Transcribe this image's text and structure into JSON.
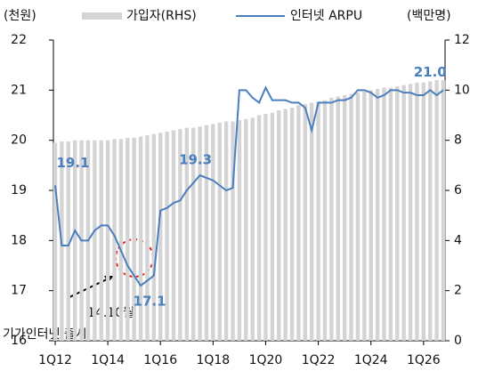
{
  "chart_data": {
    "type": "bar_line",
    "y_unit": "(천원)",
    "y2_unit": "(백만명)",
    "categories": [
      "1Q12",
      null,
      null,
      null,
      null,
      null,
      null,
      null,
      "1Q14",
      null,
      null,
      null,
      null,
      null,
      null,
      null,
      "1Q16",
      null,
      null,
      null,
      null,
      null,
      null,
      null,
      "1Q18",
      null,
      null,
      null,
      null,
      null,
      null,
      null,
      "1Q20",
      null,
      null,
      null,
      null,
      null,
      null,
      null,
      "1Q22",
      null,
      null,
      null,
      null,
      null,
      null,
      null,
      "1Q24",
      null,
      null,
      null,
      null,
      null,
      null,
      null,
      "1Q26",
      null,
      null,
      null
    ],
    "series": [
      {
        "name": "가입자(RHS)",
        "type": "bar",
        "axis": "y2",
        "color": "#d4d4d4",
        "values": [
          7.9,
          7.95,
          7.95,
          8.0,
          8.0,
          8.0,
          8.0,
          8.0,
          8.0,
          8.05,
          8.05,
          8.1,
          8.1,
          8.15,
          8.2,
          8.25,
          8.3,
          8.35,
          8.4,
          8.45,
          8.5,
          8.5,
          8.55,
          8.6,
          8.65,
          8.7,
          8.75,
          8.75,
          8.8,
          8.85,
          8.9,
          9.0,
          9.05,
          9.1,
          9.2,
          9.25,
          9.3,
          9.4,
          9.45,
          9.5,
          9.55,
          9.6,
          9.7,
          9.75,
          9.8,
          9.85,
          9.9,
          9.95,
          10.0,
          10.05,
          10.1,
          10.1,
          10.15,
          10.2,
          10.25,
          10.3,
          10.3,
          10.35,
          10.4,
          10.4
        ]
      },
      {
        "name": "인터넷 ARPU",
        "type": "line",
        "color": "#4a7ebf",
        "values": [
          19.1,
          17.9,
          17.9,
          18.2,
          18.0,
          18.0,
          18.2,
          18.3,
          18.3,
          18.1,
          17.8,
          17.5,
          17.3,
          17.1,
          17.2,
          17.3,
          18.6,
          18.65,
          18.75,
          18.8,
          19.0,
          19.15,
          19.3,
          19.25,
          19.2,
          19.1,
          19.0,
          19.05,
          21.0,
          21.0,
          20.85,
          20.75,
          21.05,
          20.8,
          20.8,
          20.8,
          20.75,
          20.75,
          20.65,
          20.2,
          20.75,
          20.75,
          20.75,
          20.8,
          20.8,
          20.85,
          21.0,
          21.0,
          20.95,
          20.85,
          20.9,
          21.0,
          21.0,
          20.95,
          20.95,
          20.9,
          20.9,
          21.0,
          20.9,
          21.0
        ],
        "value_labels": [
          "19.1",
          null,
          null,
          null,
          null,
          null,
          null,
          null,
          null,
          null,
          null,
          null,
          null,
          "17.1",
          null,
          null,
          null,
          null,
          null,
          null,
          null,
          null,
          "19.3",
          null,
          null,
          null,
          null,
          null,
          null,
          null,
          null,
          null,
          null,
          null,
          null,
          null,
          null,
          null,
          null,
          null,
          null,
          null,
          null,
          null,
          null,
          null,
          null,
          null,
          null,
          null,
          null,
          null,
          null,
          null,
          null,
          null,
          null,
          "21.0",
          null,
          null
        ]
      }
    ],
    "ylim": [
      16,
      22
    ],
    "yticks": [
      16,
      17,
      18,
      19,
      20,
      21,
      22
    ],
    "y2lim": [
      0,
      12
    ],
    "y2ticks": [
      0,
      2,
      4,
      6,
      8,
      10,
      12
    ],
    "annotation": [
      "14.10월",
      "기가인터넷  출시"
    ]
  }
}
